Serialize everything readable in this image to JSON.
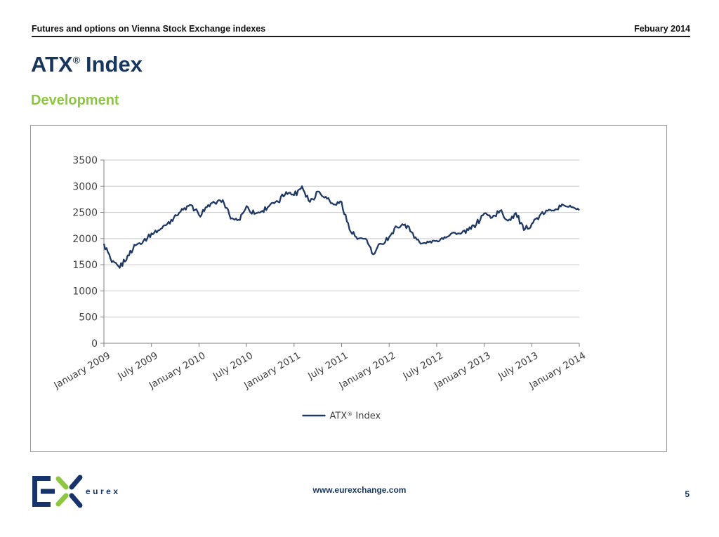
{
  "header": {
    "left_title": "Futures and options on Vienna Stock Exchange indexes",
    "right_date": "Febuary 2014"
  },
  "title": {
    "brand": "ATX",
    "mark": "®",
    "suffix": "Index"
  },
  "subtitle": "Development",
  "colors": {
    "navy": "#17365D",
    "green": "#8DC63F",
    "line": "#1F3864",
    "grid": "#C9C9C9",
    "axis": "#808080",
    "tick_text": "#3F3F3F"
  },
  "chart_data": {
    "type": "line",
    "title": "",
    "xlabel": "",
    "ylabel": "",
    "ylim": [
      0,
      3500
    ],
    "y_ticks": [
      0,
      500,
      1000,
      1500,
      2000,
      2500,
      3000,
      3500
    ],
    "x_tick_labels": [
      "January 2009",
      "July 2009",
      "January 2010",
      "July 2010",
      "January 2011",
      "July 2011",
      "January 2012",
      "July 2012",
      "January 2013",
      "July 2013",
      "January 2014"
    ],
    "grid": "horizontal",
    "legend": {
      "label": "ATX® Index",
      "position": "bottom-center"
    },
    "line_color": "#1F3864",
    "months": [
      "2009-01",
      "2009-02",
      "2009-03",
      "2009-04",
      "2009-05",
      "2009-06",
      "2009-07",
      "2009-08",
      "2009-09",
      "2009-10",
      "2009-11",
      "2009-12",
      "2010-01",
      "2010-02",
      "2010-03",
      "2010-04",
      "2010-05",
      "2010-06",
      "2010-07",
      "2010-08",
      "2010-09",
      "2010-10",
      "2010-11",
      "2010-12",
      "2011-01",
      "2011-02",
      "2011-03",
      "2011-04",
      "2011-05",
      "2011-06",
      "2011-07",
      "2011-08",
      "2011-09",
      "2011-10",
      "2011-11",
      "2011-12",
      "2012-01",
      "2012-02",
      "2012-03",
      "2012-04",
      "2012-05",
      "2012-06",
      "2012-07",
      "2012-08",
      "2012-09",
      "2012-10",
      "2012-11",
      "2012-12",
      "2013-01",
      "2013-02",
      "2013-03",
      "2013-04",
      "2013-05",
      "2013-06",
      "2013-07",
      "2013-08",
      "2013-09",
      "2013-10",
      "2013-11",
      "2013-12",
      "2014-01"
    ],
    "values": [
      1900,
      1550,
      1440,
      1680,
      1870,
      1960,
      2100,
      2160,
      2280,
      2450,
      2550,
      2640,
      2450,
      2600,
      2680,
      2735,
      2380,
      2360,
      2620,
      2470,
      2530,
      2650,
      2700,
      2890,
      2830,
      3000,
      2700,
      2900,
      2800,
      2650,
      2700,
      2170,
      1990,
      2000,
      1700,
      1900,
      2030,
      2220,
      2270,
      2100,
      1900,
      1930,
      1960,
      2030,
      2110,
      2090,
      2160,
      2270,
      2480,
      2400,
      2530,
      2340,
      2490,
      2160,
      2280,
      2440,
      2530,
      2560,
      2640,
      2600,
      2540
    ]
  },
  "footer": {
    "logo_brand": "eurex",
    "website": "www.eurexchange.com",
    "page_number": "5"
  }
}
